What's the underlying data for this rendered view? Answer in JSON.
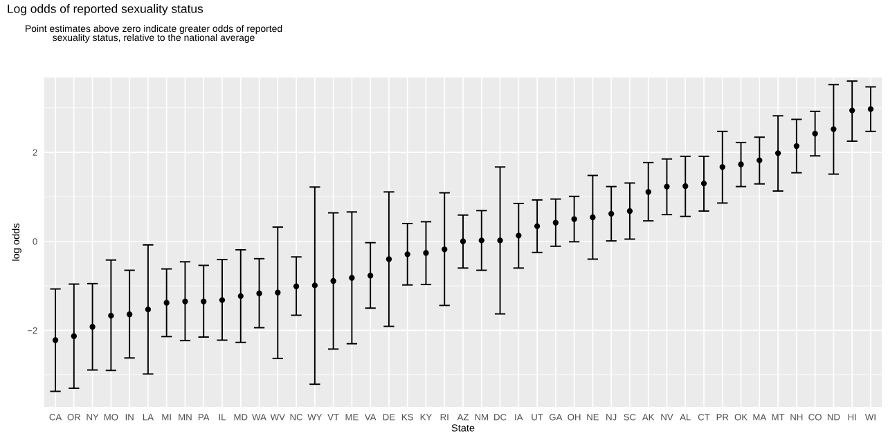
{
  "chart_data": {
    "type": "scatter",
    "title": "Log odds of reported sexuality status",
    "subtitle": "Point estimates above zero indicate greater odds of reported\nsexuality status, relative to the national average",
    "xlabel": "State",
    "ylabel": "log odds",
    "categories": [
      "CA",
      "OR",
      "NY",
      "MO",
      "IN",
      "LA",
      "MI",
      "MN",
      "PA",
      "IL",
      "MD",
      "WA",
      "WV",
      "NC",
      "WY",
      "VT",
      "ME",
      "VA",
      "DE",
      "KS",
      "KY",
      "RI",
      "AZ",
      "NM",
      "DC",
      "IA",
      "UT",
      "GA",
      "OH",
      "NE",
      "NJ",
      "SC",
      "AK",
      "NV",
      "AL",
      "CT",
      "PR",
      "OK",
      "MA",
      "MT",
      "NH",
      "CO",
      "ND",
      "HI",
      "WI"
    ],
    "values": [
      -2.22,
      -2.13,
      -1.92,
      -1.67,
      -1.64,
      -1.53,
      -1.38,
      -1.35,
      -1.35,
      -1.32,
      -1.23,
      -1.17,
      -1.15,
      -1.01,
      -0.99,
      -0.89,
      -0.82,
      -0.77,
      -0.4,
      -0.29,
      -0.26,
      -0.18,
      0.0,
      0.02,
      0.02,
      0.13,
      0.34,
      0.42,
      0.5,
      0.54,
      0.62,
      0.68,
      1.11,
      1.23,
      1.24,
      1.3,
      1.67,
      1.73,
      1.82,
      1.98,
      2.14,
      2.42,
      2.52,
      2.94,
      2.97
    ],
    "errors": [
      [
        -3.37,
        -1.07
      ],
      [
        -3.3,
        -0.96
      ],
      [
        -2.89,
        -0.95
      ],
      [
        -2.9,
        -0.42
      ],
      [
        -2.62,
        -0.65
      ],
      [
        -2.98,
        -0.08
      ],
      [
        -2.14,
        -0.62
      ],
      [
        -2.23,
        -0.46
      ],
      [
        -2.15,
        -0.54
      ],
      [
        -2.22,
        -0.41
      ],
      [
        -2.27,
        -0.19
      ],
      [
        -1.94,
        -0.39
      ],
      [
        -2.63,
        0.32
      ],
      [
        -1.66,
        -0.35
      ],
      [
        -3.21,
        1.22
      ],
      [
        -2.42,
        0.64
      ],
      [
        -2.3,
        0.66
      ],
      [
        -1.5,
        -0.03
      ],
      [
        -1.91,
        1.11
      ],
      [
        -0.98,
        0.4
      ],
      [
        -0.97,
        0.44
      ],
      [
        -1.44,
        1.09
      ],
      [
        -0.6,
        0.59
      ],
      [
        -0.65,
        0.69
      ],
      [
        -1.63,
        1.67
      ],
      [
        -0.6,
        0.85
      ],
      [
        -0.25,
        0.93
      ],
      [
        -0.11,
        0.95
      ],
      [
        -0.01,
        1.01
      ],
      [
        -0.4,
        1.48
      ],
      [
        0.01,
        1.23
      ],
      [
        0.05,
        1.31
      ],
      [
        0.46,
        1.77
      ],
      [
        0.6,
        1.85
      ],
      [
        0.56,
        1.91
      ],
      [
        0.68,
        1.91
      ],
      [
        0.86,
        2.47
      ],
      [
        1.23,
        2.22
      ],
      [
        1.29,
        2.34
      ],
      [
        1.13,
        2.82
      ],
      [
        1.54,
        2.74
      ],
      [
        1.92,
        2.92
      ],
      [
        1.51,
        3.52
      ],
      [
        2.25,
        3.6
      ],
      [
        2.47,
        3.47
      ]
    ],
    "color": "#000000",
    "marker": "circle",
    "ylim": [
      -3.72,
      3.68
    ],
    "yticks": [
      {
        "value": -2,
        "label": "−2"
      },
      0,
      2
    ],
    "grid": true
  }
}
